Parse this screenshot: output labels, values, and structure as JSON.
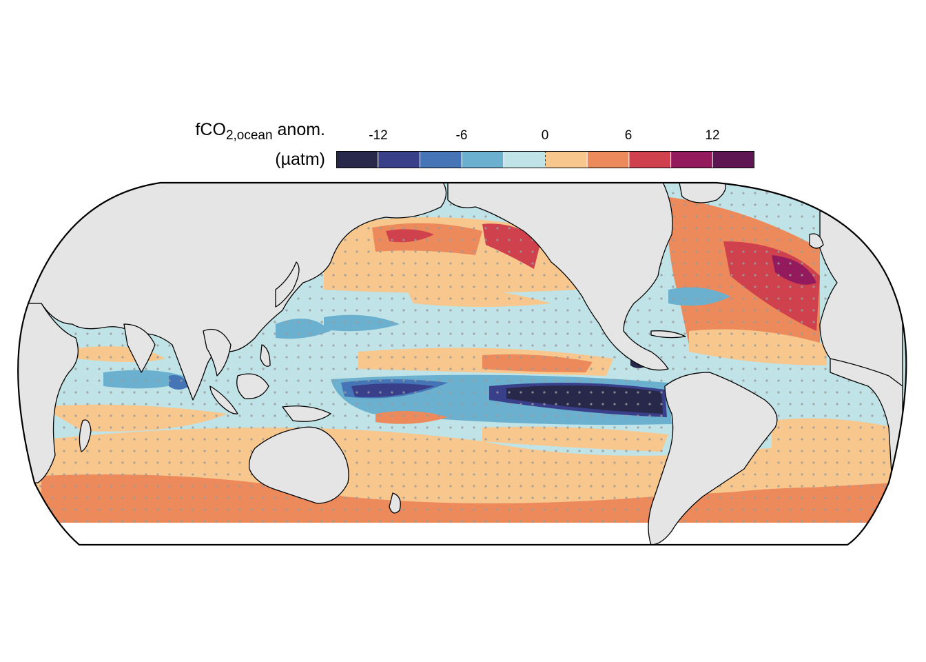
{
  "legend": {
    "title_main": "fCO",
    "title_sub": "2,ocean",
    "title_suffix": " anom.",
    "units": "(µatm)",
    "ticks": [
      "-12",
      "-6",
      "0",
      "6",
      "12"
    ],
    "tick_values": [
      -12,
      -6,
      0,
      6,
      12
    ],
    "range": [
      -15,
      15
    ],
    "bins": [
      {
        "min": -15,
        "max": -12,
        "color": "#28284b"
      },
      {
        "min": -12,
        "max": -9,
        "color": "#3a3f8a"
      },
      {
        "min": -9,
        "max": -6,
        "color": "#4575b6"
      },
      {
        "min": -6,
        "max": -3,
        "color": "#6bb0cf"
      },
      {
        "min": -3,
        "max": 0,
        "color": "#bfe3e6"
      },
      {
        "min": 0,
        "max": 3,
        "color": "#f8c78e"
      },
      {
        "min": 3,
        "max": 6,
        "color": "#ec8a5c"
      },
      {
        "min": 6,
        "max": 9,
        "color": "#d0414e"
      },
      {
        "min": 9,
        "max": 12,
        "color": "#931b5d"
      },
      {
        "min": 12,
        "max": 15,
        "color": "#5e1653"
      }
    ]
  },
  "map": {
    "projection": "pacific-centred equal-earth",
    "land_color": "#e5e5e5",
    "coastline_color": "#000000",
    "stipple_color": "#9a9a9a",
    "no_data_color": "#ffffff"
  }
}
